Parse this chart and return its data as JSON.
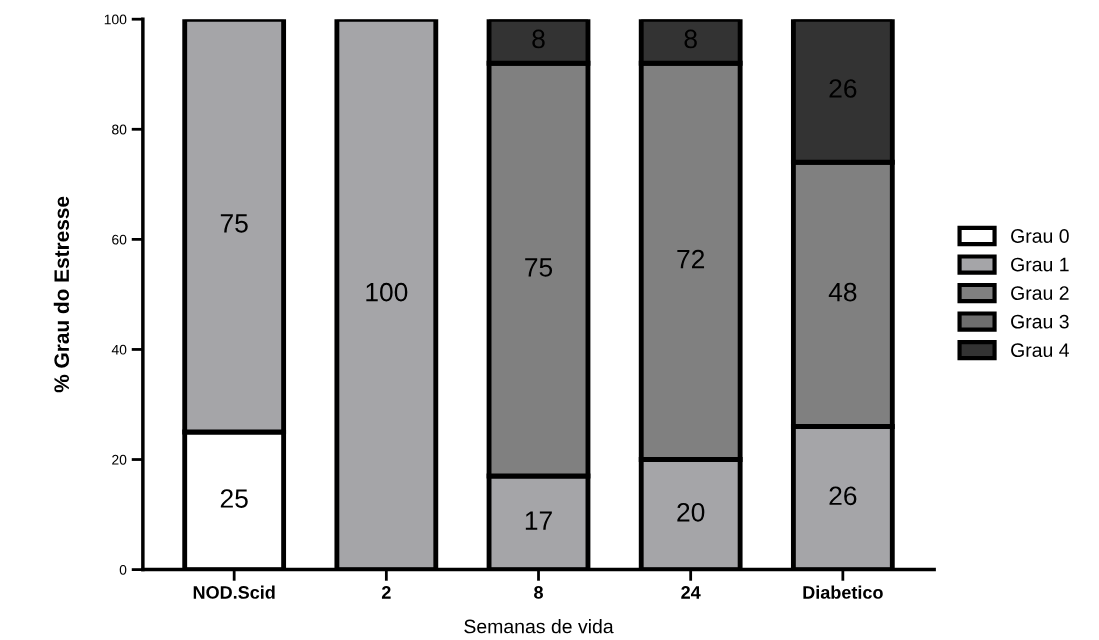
{
  "chart_data": {
    "type": "bar",
    "stacked": true,
    "xlabel": "Semanas de vida",
    "ylabel": "% Grau do Estresse",
    "categories": [
      "NOD.Scid",
      "2",
      "8",
      "24",
      "Diabetico"
    ],
    "series": [
      {
        "name": "Grau 0",
        "color": "#ffffff",
        "values": [
          25,
          null,
          null,
          null,
          null
        ]
      },
      {
        "name": "Grau 1",
        "color": "#a5a5a8",
        "values": [
          75,
          100,
          17,
          20,
          26
        ]
      },
      {
        "name": "Grau 2",
        "color": "#808080",
        "values": [
          null,
          null,
          75,
          72,
          48
        ]
      },
      {
        "name": "Grau 3",
        "color": "#6e6e6e",
        "values": [
          null,
          null,
          null,
          null,
          null
        ]
      },
      {
        "name": "Grau 4",
        "color": "#333333",
        "values": [
          null,
          null,
          8,
          8,
          26
        ]
      }
    ],
    "ylim": [
      0,
      100
    ],
    "yticks": [
      0,
      20,
      40,
      60,
      80,
      100
    ],
    "data_labels": true,
    "legend": "right",
    "grid": false
  }
}
